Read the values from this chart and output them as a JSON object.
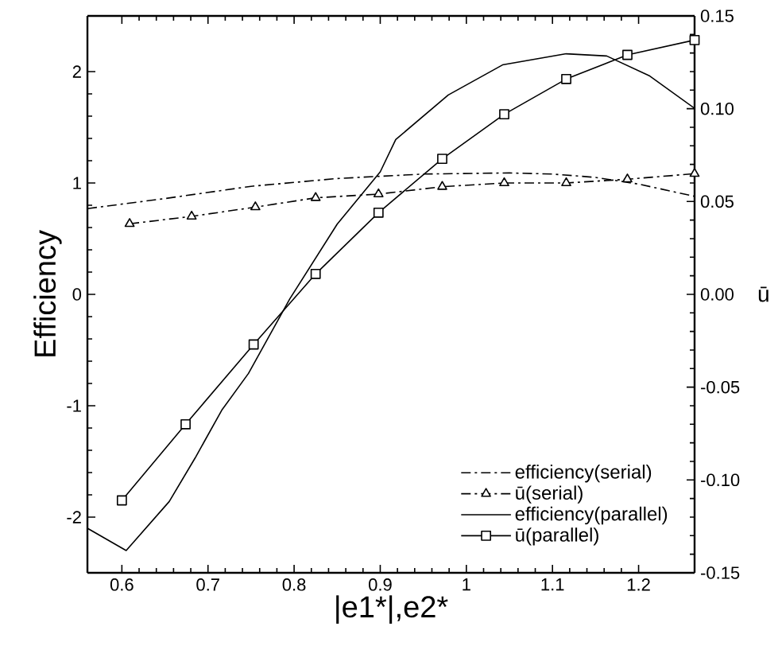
{
  "chart_data": {
    "type": "line",
    "xlabel": "|e1*|,e2*",
    "ylabel": "Efficiency",
    "y2label": "ū",
    "xlim": [
      0.56,
      1.265
    ],
    "xticks": [
      0.6,
      0.7,
      0.8,
      0.9,
      1,
      1.1,
      1.2
    ],
    "ylim": [
      -2.5,
      2.5
    ],
    "yticks": [
      -2,
      -1,
      0,
      1,
      2
    ],
    "y2lim": [
      -0.15,
      0.15
    ],
    "y2ticks": [
      -0.15,
      {
        "value": -0.1,
        "label": "-0.10"
      },
      -0.05,
      {
        "value": 0,
        "label": "0.00"
      },
      0.05,
      {
        "value": 0.1,
        "label": "0.10"
      },
      0.15
    ],
    "legend": "bottom right",
    "grid": false,
    "series": [
      {
        "name": "efficiency(serial)",
        "color": "#000000",
        "line_style": "dashdot",
        "marker": "none",
        "x": [
          0.56,
          0.65,
          0.75,
          0.85,
          0.95,
          1.05,
          1.1,
          1.15,
          1.2,
          1.265
        ],
        "values": [
          0.77,
          0.86,
          0.97,
          1.04,
          1.08,
          1.09,
          1.08,
          1.05,
          0.99,
          0.88
        ]
      },
      {
        "name": "ū(serial)",
        "color": "#000000",
        "line_style": "dashdot",
        "marker": "triangle",
        "axis": "y2",
        "x": [
          0.609,
          0.681,
          0.755,
          0.825,
          0.898,
          0.972,
          1.044,
          1.116,
          1.187,
          1.265
        ],
        "values": [
          0.038,
          0.042,
          0.047,
          0.052,
          0.054,
          0.058,
          0.06,
          0.06,
          0.062,
          0.065
        ]
      },
      {
        "name": "efficiency(parallel)",
        "color": "#000000",
        "line_style": "solid",
        "marker": "none",
        "x": [
          0.56,
          0.605,
          0.655,
          0.685,
          0.716,
          0.747,
          0.795,
          0.85,
          0.9,
          0.918,
          0.979,
          1.042,
          1.116,
          1.163,
          1.213,
          1.265
        ],
        "values": [
          -2.1,
          -2.3,
          -1.86,
          -1.47,
          -1.04,
          -0.71,
          -0.04,
          0.63,
          1.1,
          1.39,
          1.79,
          2.06,
          2.16,
          2.14,
          1.96,
          1.67
        ]
      },
      {
        "name": "ū(parallel)",
        "color": "#000000",
        "line_style": "solid",
        "marker": "square",
        "axis": "y2",
        "x": [
          0.6,
          0.674,
          0.753,
          0.825,
          0.898,
          0.972,
          1.044,
          1.116,
          1.187,
          1.265
        ],
        "values": [
          -0.111,
          -0.07,
          -0.027,
          0.011,
          0.044,
          0.073,
          0.097,
          0.116,
          0.129,
          0.137
        ]
      }
    ]
  }
}
